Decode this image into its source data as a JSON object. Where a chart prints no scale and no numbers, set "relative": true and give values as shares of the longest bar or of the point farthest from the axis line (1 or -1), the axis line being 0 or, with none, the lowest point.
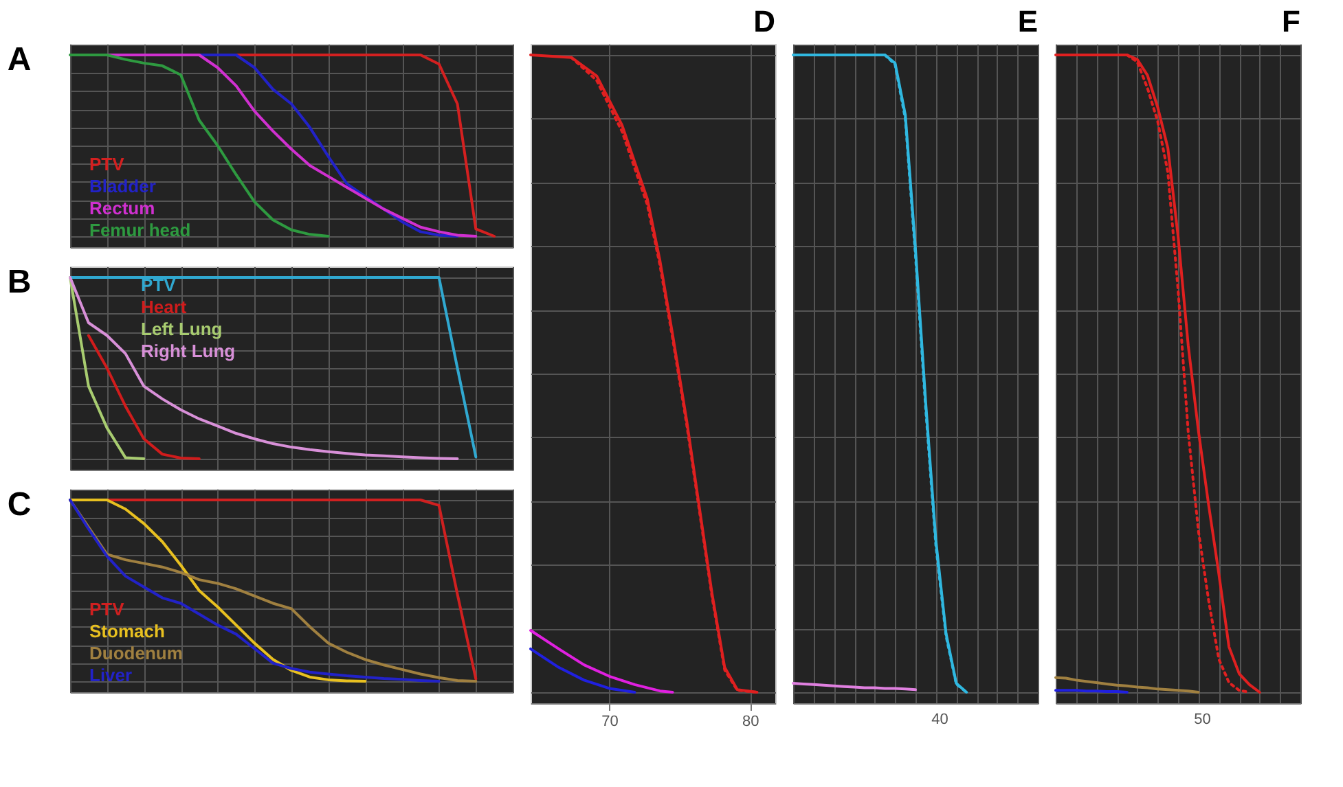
{
  "chart_data": [
    {
      "type": "line",
      "title": "A",
      "categories": [
        null,
        null,
        null,
        null,
        null,
        null,
        null,
        null,
        null,
        null,
        null,
        null,
        null,
        null,
        null,
        null,
        null,
        null,
        null,
        null,
        null,
        null,
        null,
        null,
        null
      ],
      "relative": true,
      "grid": true,
      "legend": "bottom left",
      "tick_labels": false,
      "series": [
        {
          "name": "PTV",
          "color": "#d42020",
          "values": [
            null,
            null,
            null,
            null,
            null,
            null,
            null,
            null,
            null,
            1,
            1,
            1,
            1,
            1,
            1,
            1,
            1,
            1,
            1,
            1,
            0.95,
            0.73,
            0.04,
            0,
            null
          ]
        },
        {
          "name": "Bladder",
          "color": "#2222c8",
          "values": [
            null,
            null,
            null,
            null,
            null,
            null,
            null,
            1,
            1,
            1,
            0.93,
            0.81,
            0.73,
            0.6,
            0.44,
            0.29,
            0.22,
            0.15,
            0.08,
            0.025,
            0.006,
            0,
            null,
            null,
            null
          ]
        },
        {
          "name": "Rectum",
          "color": "#d030d0",
          "values": [
            null,
            null,
            1,
            1,
            1,
            1,
            1,
            1,
            0.93,
            0.83,
            0.69,
            0.58,
            0.48,
            0.39,
            0.33,
            0.27,
            0.21,
            0.15,
            0.1,
            0.05,
            0.025,
            0.006,
            0,
            null,
            null
          ]
        },
        {
          "name": "Femur head",
          "color": "#2e9a40",
          "values": [
            1,
            1,
            1,
            0.975,
            0.955,
            0.94,
            0.89,
            0.64,
            0.5,
            0.34,
            0.19,
            0.09,
            0.035,
            0.01,
            0,
            null,
            null,
            null,
            null,
            null,
            null,
            null,
            null,
            null,
            null
          ]
        }
      ]
    },
    {
      "type": "line",
      "title": "B",
      "categories": [
        null,
        null,
        null,
        null,
        null,
        null,
        null,
        null,
        null,
        null,
        null,
        null,
        null,
        null,
        null,
        null,
        null,
        null,
        null,
        null,
        null,
        null,
        null,
        null,
        null
      ],
      "relative": true,
      "grid": true,
      "legend": "top left",
      "tick_labels": false,
      "series": [
        {
          "name": "PTV",
          "color": "#30a8d0",
          "values": [
            1,
            1,
            1,
            1,
            1,
            1,
            1,
            1,
            1,
            1,
            1,
            1,
            1,
            1,
            1,
            1,
            1,
            1,
            1,
            1,
            1,
            0.5,
            0.01,
            null,
            null
          ]
        },
        {
          "name": "Heart",
          "color": "#d01c1c",
          "values": [
            null,
            0.68,
            0.5,
            0.29,
            0.11,
            0.025,
            0.004,
            0,
            null,
            null,
            null,
            null,
            null,
            null,
            null,
            null,
            null,
            null,
            null,
            null,
            null,
            null,
            null,
            null,
            null
          ]
        },
        {
          "name": "Left Lung",
          "color": "#a8cc70",
          "values": [
            1,
            0.4,
            0.17,
            0.006,
            0,
            null,
            null,
            null,
            null,
            null,
            null,
            null,
            null,
            null,
            null,
            null,
            null,
            null,
            null,
            null,
            null,
            null,
            null,
            null,
            null
          ]
        },
        {
          "name": "Right Lung",
          "color": "#d890d8",
          "values": [
            1,
            0.75,
            0.68,
            0.58,
            0.4,
            0.33,
            0.27,
            0.22,
            0.18,
            0.14,
            0.11,
            0.083,
            0.064,
            0.05,
            0.039,
            0.029,
            0.021,
            0.016,
            0.01,
            0.006,
            0.002,
            0,
            null,
            null,
            null
          ]
        }
      ]
    },
    {
      "type": "line",
      "title": "C",
      "categories": [
        null,
        null,
        null,
        null,
        null,
        null,
        null,
        null,
        null,
        null,
        null,
        null,
        null,
        null,
        null,
        null,
        null,
        null,
        null,
        null,
        null,
        null,
        null,
        null,
        null
      ],
      "relative": true,
      "grid": true,
      "legend": "bottom left",
      "tick_labels": false,
      "series": [
        {
          "name": "PTV",
          "color": "#d02020",
          "values": [
            null,
            null,
            1,
            1,
            1,
            1,
            1,
            1,
            1,
            1,
            1,
            1,
            1,
            1,
            1,
            1,
            1,
            1,
            1,
            1,
            0.97,
            0.48,
            0.013,
            null,
            null
          ]
        },
        {
          "name": "Stomach",
          "color": "#e8c020",
          "values": [
            1,
            1,
            1,
            0.95,
            0.87,
            0.77,
            0.64,
            0.5,
            0.41,
            0.31,
            0.21,
            0.12,
            0.06,
            0.023,
            0.008,
            0.002,
            0,
            null,
            null,
            null,
            null,
            null,
            null,
            null,
            null
          ]
        },
        {
          "name": "Duodenum",
          "color": "#a08040",
          "values": [
            1,
            0.85,
            0.7,
            0.67,
            0.65,
            0.63,
            0.6,
            0.56,
            0.54,
            0.51,
            0.47,
            0.43,
            0.4,
            0.3,
            0.21,
            0.16,
            0.12,
            0.09,
            0.065,
            0.04,
            0.02,
            0.004,
            0,
            null,
            null
          ]
        },
        {
          "name": "Liver",
          "color": "#2222c8",
          "values": [
            1,
            0.84,
            0.69,
            0.58,
            0.52,
            0.46,
            0.43,
            0.37,
            0.31,
            0.26,
            0.18,
            0.1,
            0.07,
            0.05,
            0.04,
            0.03,
            0.023,
            0.015,
            0.01,
            0.004,
            0,
            null,
            null,
            null,
            null
          ]
        }
      ]
    },
    {
      "type": "line",
      "title": "D",
      "relative": true,
      "grid": true,
      "tick_labels": "x",
      "xlim": [
        64.4,
        81.8
      ],
      "xticks": [
        70,
        80
      ],
      "series": [
        {
          "color": "#e02020",
          "x": [
            64.4,
            67.3,
            69.1,
            70.9,
            72.7,
            73.6,
            74.5,
            75.5,
            76.4,
            77.3,
            78.2,
            79.1,
            80.5
          ],
          "values": [
            1,
            0.996,
            0.967,
            0.89,
            0.774,
            0.677,
            0.561,
            0.426,
            0.29,
            0.155,
            0.039,
            0.004,
            0
          ]
        },
        {
          "color": "#e02020",
          "line_style": "dotted",
          "x": [
            67.3,
            69.1,
            70.9,
            72.7,
            73.6,
            74.5,
            75.5,
            76.4,
            77.3,
            78.2,
            79.1,
            80.5
          ],
          "values": [
            0.996,
            0.96,
            0.88,
            0.765,
            0.67,
            0.555,
            0.42,
            0.285,
            0.15,
            0.035,
            0.003,
            0
          ]
        },
        {
          "color": "#e020e0",
          "x": [
            64.4,
            66.4,
            68.2,
            70,
            71.8,
            73.6,
            74.5
          ],
          "values": [
            0.097,
            0.068,
            0.043,
            0.025,
            0.012,
            0.002,
            0
          ]
        },
        {
          "color": "#2020e0",
          "x": [
            64.4,
            66.4,
            68.2,
            70,
            71.8
          ],
          "values": [
            0.068,
            0.039,
            0.019,
            0.006,
            0
          ]
        }
      ]
    },
    {
      "type": "line",
      "title": "E",
      "categories": [
        null,
        null,
        null,
        null,
        null,
        null,
        null,
        null,
        null,
        null,
        null,
        null,
        null,
        null,
        null,
        null,
        null,
        null,
        null,
        null,
        null,
        null,
        null,
        null,
        null
      ],
      "relative": true,
      "grid": true,
      "tick_labels": false,
      "annotations": [
        "40"
      ],
      "series": [
        {
          "color": "#30b8e0",
          "values": [
            1,
            1,
            1,
            1,
            1,
            1,
            1,
            1,
            1,
            1,
            0.987,
            0.906,
            0.695,
            0.455,
            0.238,
            0.092,
            0.014,
            0,
            null,
            null,
            null,
            null,
            null,
            null,
            null
          ]
        },
        {
          "color": "#30b8e0",
          "line_style": "dotted",
          "values": [
            null,
            null,
            null,
            null,
            null,
            null,
            null,
            null,
            null,
            1,
            0.985,
            0.9,
            0.685,
            0.445,
            0.23,
            0.088,
            0.013,
            0,
            null,
            null,
            null,
            null,
            null,
            null,
            null
          ]
        },
        {
          "color": "#e080e0",
          "values": [
            0.014,
            0.013,
            0.012,
            0.011,
            0.01,
            0.009,
            0.008,
            0.007,
            0.007,
            0.006,
            0.006,
            0.005,
            0.004,
            null,
            null,
            null,
            null,
            null,
            null,
            null,
            null,
            null,
            null,
            null,
            null
          ]
        }
      ]
    },
    {
      "type": "line",
      "title": "F",
      "categories": [
        null,
        null,
        null,
        null,
        null,
        null,
        null,
        null,
        null,
        null,
        null,
        null,
        null,
        null,
        null,
        null,
        null,
        null,
        null,
        null,
        null,
        null,
        null,
        null,
        null
      ],
      "relative": true,
      "grid": true,
      "tick_labels": false,
      "annotations": [
        "50"
      ],
      "series": [
        {
          "color": "#e02020",
          "values": [
            1,
            1,
            1,
            1,
            1,
            1,
            1,
            1,
            0.993,
            0.968,
            0.918,
            0.854,
            0.716,
            0.544,
            0.41,
            0.294,
            0.186,
            0.071,
            0.029,
            0.012,
            0,
            null,
            null,
            null,
            null
          ]
        },
        {
          "color": "#e02020",
          "line_style": "dotted",
          "values": [
            null,
            null,
            null,
            null,
            null,
            null,
            null,
            1,
            0.989,
            0.948,
            0.896,
            0.816,
            0.632,
            0.408,
            0.253,
            0.144,
            0.052,
            0.015,
            0.003,
            0,
            null,
            null,
            null,
            null,
            null
          ]
        },
        {
          "color": "#a08040",
          "values": [
            0.023,
            0.022,
            0.019,
            0.017,
            0.015,
            0.013,
            0.011,
            0.01,
            0.008,
            0.007,
            0.005,
            0.004,
            0.003,
            0.002,
            0,
            null,
            null,
            null,
            null,
            null,
            null,
            null,
            null,
            null,
            null
          ]
        },
        {
          "color": "#2020e0",
          "values": [
            0.003,
            0.003,
            0.003,
            0.002,
            0.002,
            0.001,
            0.001,
            0,
            null,
            null,
            null,
            null,
            null,
            null,
            null,
            null,
            null,
            null,
            null,
            null,
            null,
            null,
            null,
            null,
            null
          ]
        }
      ]
    }
  ]
}
